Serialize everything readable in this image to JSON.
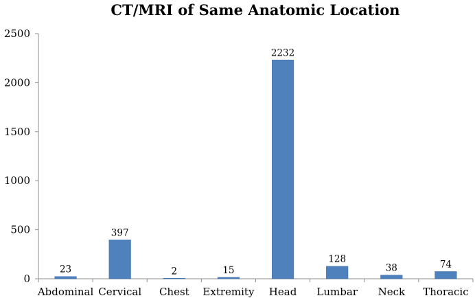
{
  "chart_data": {
    "type": "bar",
    "title": "CT/MRI of Same Anatomic Location",
    "xlabel": "",
    "ylabel": "",
    "categories": [
      "Abdominal",
      "Cervical",
      "Chest",
      "Extremity",
      "Head",
      "Lumbar",
      "Neck",
      "Thoracic"
    ],
    "values": [
      23,
      397,
      2,
      15,
      2232,
      128,
      38,
      74
    ],
    "data_labels": [
      "23",
      "397",
      "2",
      "15",
      "2232",
      "128",
      "38",
      "74"
    ],
    "ylim": [
      0,
      2500
    ],
    "yticks": [
      0,
      500,
      1000,
      1500,
      2000,
      2500
    ],
    "ytick_labels": [
      "0",
      "500",
      "1000",
      "1500",
      "2000",
      "2500"
    ],
    "grid": false,
    "legend": "none",
    "colors": {
      "bar": "#4f81bd",
      "bar_edge": "#3f6fa8",
      "axis": "#8c8c8c"
    }
  }
}
